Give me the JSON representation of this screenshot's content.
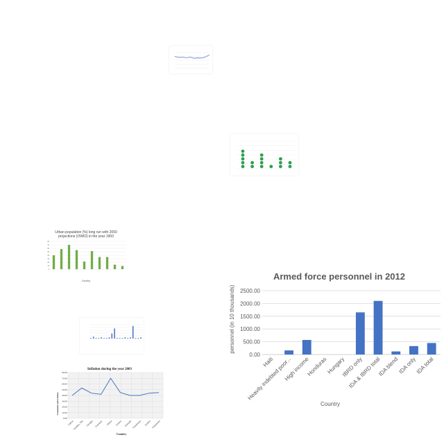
{
  "chart_data": [
    {
      "id": "line_small",
      "type": "line",
      "title": "",
      "xlabel": "",
      "ylabel": "",
      "color": "#5b7fd6",
      "x": [
        "1",
        "2",
        "3",
        "4",
        "5",
        "6",
        "7",
        "8",
        "9",
        "10"
      ],
      "values": [
        45,
        42,
        43,
        40,
        43,
        38,
        40,
        39,
        44,
        52
      ],
      "ylim": [
        0,
        60
      ]
    },
    {
      "id": "dot_plot",
      "type": "scatter",
      "title": "",
      "xlabel": "",
      "ylabel": "",
      "color": "#2e9e4f",
      "categories": [
        "1",
        "2",
        "3",
        "4",
        "5",
        "6"
      ],
      "values": [
        5,
        2,
        4,
        1,
        3,
        2
      ],
      "ylim": [
        0,
        7
      ]
    },
    {
      "id": "urban_population",
      "type": "bar",
      "title": "Urban population (%) long run with 2050 projections (OWID) in the year 1950",
      "xlabel": "Country",
      "ylabel": "Percentage of urban population",
      "color": "#70ad47",
      "categories": [
        "1",
        "2",
        "3",
        "4",
        "5",
        "6",
        "7",
        "8",
        "9",
        "10"
      ],
      "values": [
        40,
        58,
        70,
        55,
        22,
        52,
        35,
        35,
        13,
        9
      ],
      "ylim": [
        0,
        80
      ],
      "yticks": [
        "0",
        "10",
        "20",
        "30",
        "40",
        "50",
        "60",
        "70",
        "80"
      ]
    },
    {
      "id": "blue_bars_small",
      "type": "bar",
      "title": "",
      "xlabel": "",
      "ylabel": "",
      "color": "#4472c4",
      "categories": [
        "1",
        "2",
        "3",
        "4",
        "5",
        "6",
        "7",
        "8",
        "9",
        "10",
        "11",
        "12",
        "13",
        "14",
        "15",
        "16",
        "17",
        "18",
        "19",
        "20"
      ],
      "values": [
        1,
        3,
        1,
        1,
        2,
        1,
        1,
        2,
        8,
        16,
        1,
        1,
        1,
        2,
        1,
        2,
        20,
        1,
        1,
        2
      ],
      "ylim": [
        0,
        22
      ]
    },
    {
      "id": "inflation",
      "type": "line",
      "title": "Inflation during the year 2003",
      "xlabel": "Country",
      "ylabel": "Consumer price index",
      "color": "#4472c4",
      "categories": [
        "Gabon",
        "Gambia, The",
        "Georgia",
        "Germany",
        "Ghana",
        "Greece",
        "Grenada",
        "Guatemala",
        "Guinea",
        "Guatemala"
      ],
      "values": [
        40,
        53,
        44,
        42,
        70,
        45,
        40,
        40,
        44,
        45
      ],
      "ylim": [
        0,
        80
      ],
      "yticks": [
        "0.00",
        "10.00",
        "20.00",
        "30.00",
        "40.00",
        "50.00",
        "60.00",
        "70.00",
        "80.00"
      ]
    },
    {
      "id": "armed_force",
      "type": "bar",
      "title": "Armed force personnel in 2012",
      "xlabel": "Country",
      "ylabel": "personnel (in 10 thousands)",
      "color": "#4472c4",
      "categories": [
        "Haiti",
        "Heavily indebted poor...",
        "High income",
        "Honduras",
        "Hungary",
        "IBRD only",
        "IDA & IBRD total",
        "IDA blend",
        "IDA only",
        "IDA total"
      ],
      "values": [
        0,
        160,
        570,
        0,
        0,
        1650,
        2100,
        120,
        330,
        450
      ],
      "ylim": [
        0,
        2500
      ],
      "yticks": [
        "0.00",
        "500.00",
        "1000.00",
        "1500.00",
        "2000.00",
        "2500.00"
      ]
    }
  ]
}
